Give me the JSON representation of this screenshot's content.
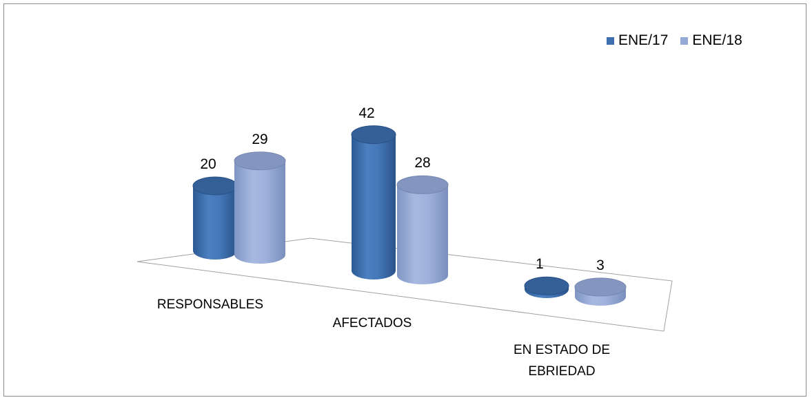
{
  "chart_data": {
    "type": "bar",
    "categories": [
      "RESPONSABLES",
      "AFECTADOS",
      "EN ESTADO DE EBRIEDAD"
    ],
    "series": [
      {
        "name": "ENE/17",
        "values": [
          20,
          42,
          1
        ],
        "color": "#3d6fae"
      },
      {
        "name": "ENE/18",
        "values": [
          29,
          28,
          3
        ],
        "color": "#96aad6"
      }
    ],
    "ylim": [
      0,
      45
    ],
    "legend": "top-right",
    "grid": false,
    "shape": "3d-cylinder"
  }
}
